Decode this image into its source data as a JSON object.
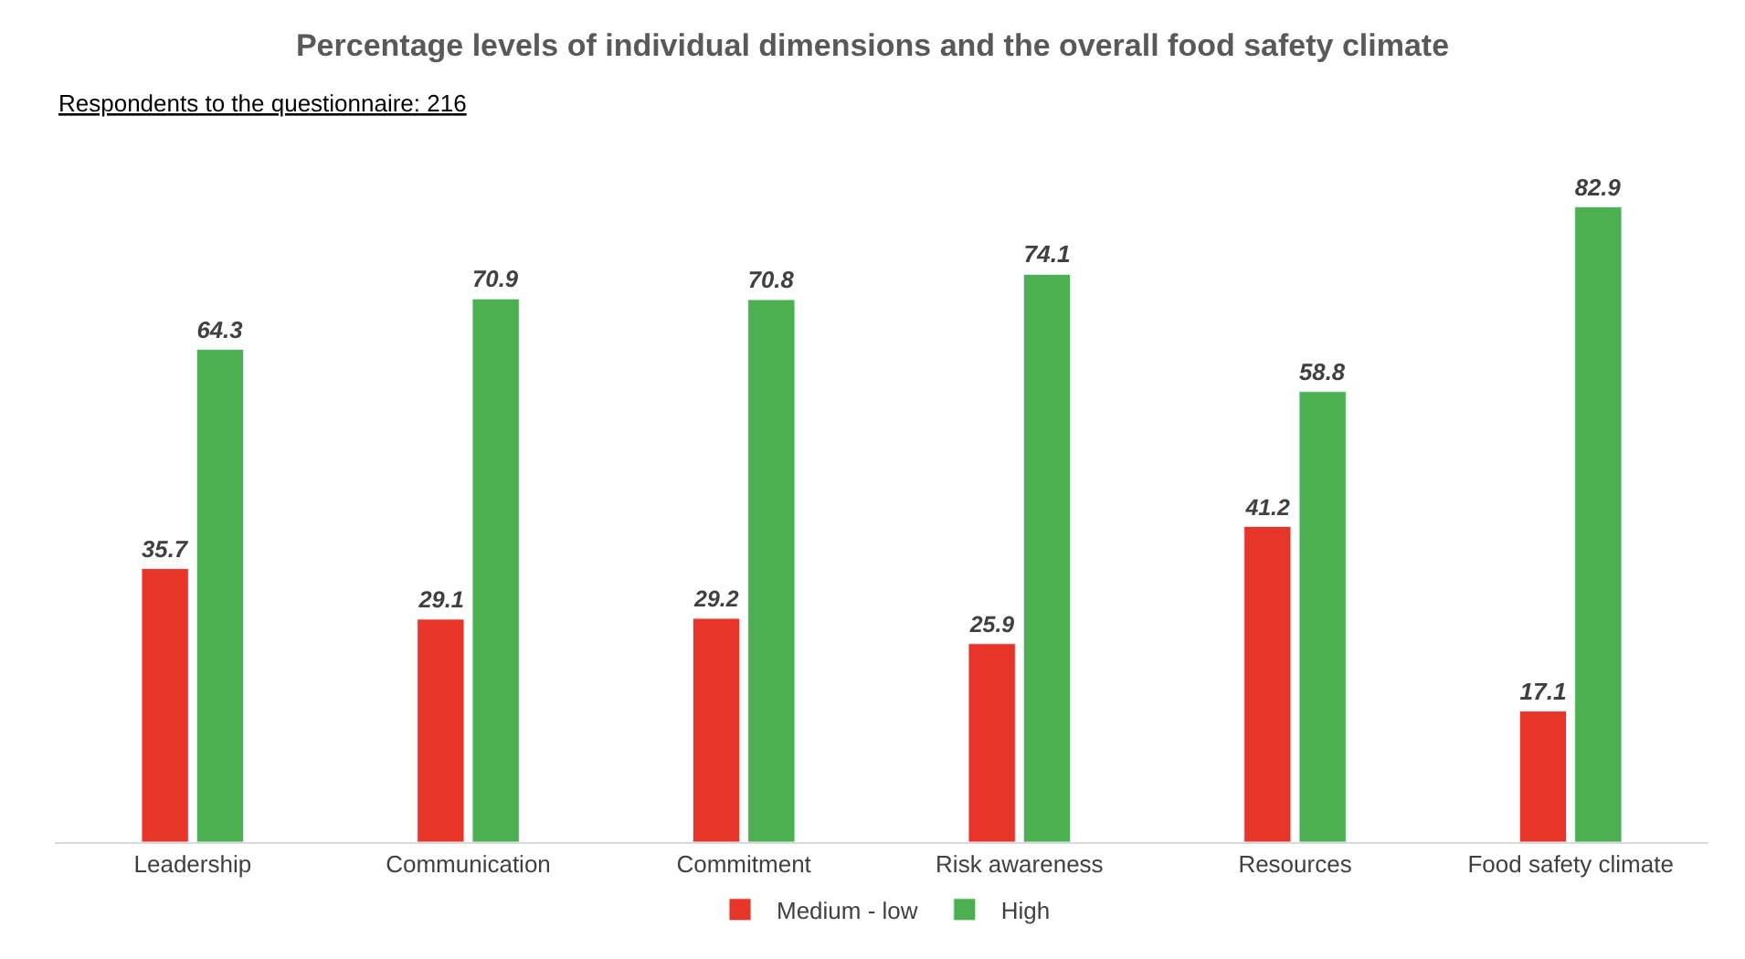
{
  "chart_data": {
    "type": "bar",
    "title": "Percentage levels of individual dimensions and the overall food safety climate",
    "annotations": [
      "Respondents to the questionnaire: 216"
    ],
    "categories": [
      "Leadership",
      "Communication",
      "Commitment",
      "Risk awareness",
      "Resources",
      "Food safety climate"
    ],
    "series": [
      {
        "name": "Medium - low",
        "color": "#e8352a",
        "values": [
          35.7,
          29.1,
          29.2,
          25.9,
          41.2,
          17.1
        ]
      },
      {
        "name": "High",
        "color": "#4caf50",
        "values": [
          64.3,
          70.9,
          70.8,
          74.1,
          58.8,
          82.9
        ]
      }
    ],
    "data_labels": true,
    "legend": "bottom"
  }
}
